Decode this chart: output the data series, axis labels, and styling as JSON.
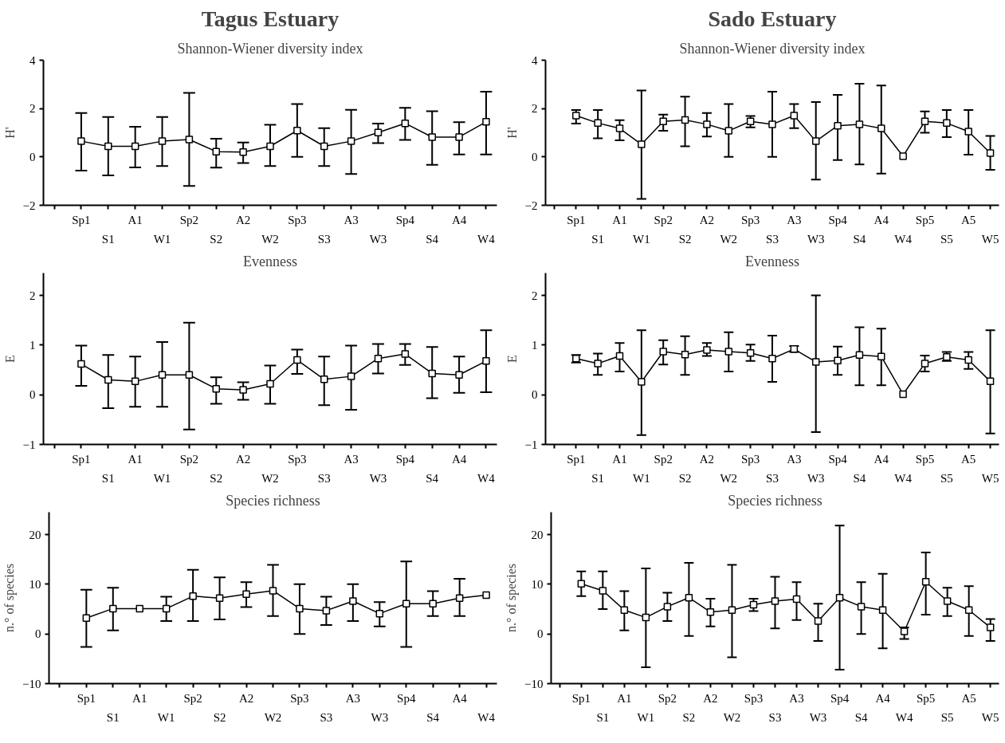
{
  "chart_data": [
    {
      "type": "line",
      "title": "Tagus Estuary",
      "subtitle": "Shannon-Wiener diversity index",
      "ylabel": "H'",
      "categories": [
        "Sp1",
        "S1",
        "A1",
        "W1",
        "Sp2",
        "S2",
        "A2",
        "W2",
        "Sp3",
        "S3",
        "A3",
        "W3",
        "Sp4",
        "S4",
        "A4",
        "W4"
      ],
      "ylim": [
        -2,
        4
      ],
      "yticks": [
        -2,
        0,
        2,
        4
      ],
      "marker": "square",
      "line_style": "solid",
      "grid": false,
      "series": [
        {
          "color": "#000000",
          "values": [
            0.65,
            0.44,
            0.44,
            0.65,
            0.72,
            0.22,
            0.2,
            0.44,
            1.09,
            0.44,
            0.65,
            1.01,
            1.39,
            0.82,
            0.82,
            1.45
          ],
          "errors": [
            [
              -0.57,
              1.82
            ],
            [
              -0.76,
              1.65
            ],
            [
              -0.43,
              1.25
            ],
            [
              -0.38,
              1.65
            ],
            [
              -1.2,
              2.65
            ],
            [
              -0.44,
              0.75
            ],
            [
              -0.25,
              0.6
            ],
            [
              -0.38,
              1.33
            ],
            [
              0,
              2.19
            ],
            [
              -0.38,
              1.19
            ],
            [
              -0.71,
              1.95
            ],
            [
              0.57,
              1.38
            ],
            [
              0.7,
              2.03
            ],
            [
              -0.33,
              1.89
            ],
            [
              0.1,
              1.44
            ],
            [
              0.1,
              2.7
            ]
          ]
        }
      ]
    },
    {
      "type": "line",
      "title": "Sado Estuary",
      "subtitle": "Shannon-Wiener diversity index",
      "ylabel": "H'",
      "categories": [
        "Sp1",
        "S1",
        "A1",
        "W1",
        "Sp2",
        "S2",
        "A2",
        "W2",
        "Sp3",
        "S3",
        "A3",
        "W3",
        "Sp4",
        "S4",
        "A4",
        "W4",
        "Sp5",
        "S5",
        "A5",
        "W5"
      ],
      "ylim": [
        -2,
        4
      ],
      "yticks": [
        -2,
        0,
        2,
        4
      ],
      "marker": "square",
      "line_style": "solid",
      "grid": false,
      "series": [
        {
          "color": "#000000",
          "values": [
            1.71,
            1.4,
            1.18,
            0.52,
            1.47,
            1.53,
            1.35,
            1.08,
            1.47,
            1.35,
            1.71,
            0.65,
            1.29,
            1.35,
            1.18,
            0.03,
            1.47,
            1.4,
            1.05,
            0.16
          ],
          "errors": [
            [
              1.38,
              1.94
            ],
            [
              0.77,
              1.94
            ],
            [
              0.69,
              1.52
            ],
            [
              -1.74,
              2.75
            ],
            [
              1.08,
              1.75
            ],
            [
              0.44,
              2.49
            ],
            [
              0.84,
              1.82
            ],
            [
              0,
              2.19
            ],
            [
              1.22,
              1.69
            ],
            [
              0,
              2.7
            ],
            [
              1.19,
              2.19
            ],
            [
              -0.94,
              2.27
            ],
            [
              -0.13,
              2.57
            ],
            [
              -0.31,
              3.03
            ],
            [
              -0.69,
              2.95
            ],
            null,
            [
              1.0,
              1.88
            ],
            [
              0.82,
              1.94
            ],
            [
              0.09,
              1.94
            ],
            [
              -0.53,
              0.87
            ]
          ]
        }
      ]
    },
    {
      "type": "line",
      "title": "Evenness",
      "ylabel": "E",
      "categories": [
        "Sp1",
        "S1",
        "A1",
        "W1",
        "Sp2",
        "S2",
        "A2",
        "W2",
        "Sp3",
        "S3",
        "A3",
        "W3",
        "Sp4",
        "S4",
        "A4",
        "W4"
      ],
      "ylim": [
        -1,
        2.45
      ],
      "yticks": [
        -1,
        0,
        1,
        2
      ],
      "marker": "square",
      "line_style": "solid",
      "grid": false,
      "series": [
        {
          "color": "#000000",
          "values": [
            0.62,
            0.3,
            0.27,
            0.4,
            0.4,
            0.12,
            0.1,
            0.22,
            0.7,
            0.31,
            0.37,
            0.73,
            0.82,
            0.43,
            0.4,
            0.68
          ],
          "errors": [
            [
              0.18,
              0.99
            ],
            [
              -0.27,
              0.8
            ],
            [
              -0.24,
              0.77
            ],
            [
              -0.24,
              1.06
            ],
            [
              -0.7,
              1.45
            ],
            [
              -0.18,
              0.35
            ],
            [
              -0.1,
              0.25
            ],
            [
              -0.18,
              0.59
            ],
            [
              0.42,
              0.91
            ],
            [
              -0.21,
              0.77
            ],
            [
              -0.3,
              0.99
            ],
            [
              0.43,
              1.02
            ],
            [
              0.6,
              1.02
            ],
            [
              -0.07,
              0.96
            ],
            [
              0.04,
              0.77
            ],
            [
              0.05,
              1.3
            ]
          ]
        }
      ]
    },
    {
      "type": "line",
      "title": "Evenness",
      "ylabel": "E",
      "categories": [
        "Sp1",
        "S1",
        "A1",
        "W1",
        "Sp2",
        "S2",
        "A2",
        "W2",
        "Sp3",
        "S3",
        "A3",
        "W3",
        "Sp4",
        "S4",
        "A4",
        "W4",
        "Sp5",
        "S5",
        "A5",
        "W5"
      ],
      "ylim": [
        -1,
        2.45
      ],
      "yticks": [
        -1,
        0,
        1,
        2
      ],
      "marker": "square",
      "line_style": "solid",
      "grid": false,
      "series": [
        {
          "color": "#000000",
          "values": [
            0.73,
            0.63,
            0.78,
            0.26,
            0.87,
            0.81,
            0.9,
            0.87,
            0.84,
            0.73,
            0.92,
            0.66,
            0.69,
            0.8,
            0.77,
            0.01,
            0.63,
            0.76,
            0.7,
            0.27
          ],
          "errors": [
            [
              0.65,
              0.8
            ],
            [
              0.4,
              0.83
            ],
            [
              0.47,
              1.04
            ],
            [
              -0.81,
              1.3
            ],
            [
              0.61,
              1.1
            ],
            [
              0.4,
              1.18
            ],
            [
              0.78,
              1.04
            ],
            [
              0.47,
              1.26
            ],
            [
              0.68,
              1.01
            ],
            [
              0.26,
              1.19
            ],
            [
              0.86,
              0.98
            ],
            [
              -0.75,
              2.0
            ],
            [
              0.4,
              0.97
            ],
            [
              0.19,
              1.36
            ],
            [
              0.19,
              1.33
            ],
            null,
            [
              0.47,
              0.79
            ],
            [
              0.68,
              0.86
            ],
            [
              0.52,
              0.86
            ],
            [
              -0.78,
              1.3
            ]
          ]
        }
      ]
    },
    {
      "type": "line",
      "title": "Species richness",
      "ylabel": "n.° of species",
      "categories": [
        "Sp1",
        "S1",
        "A1",
        "W1",
        "Sp2",
        "S2",
        "A2",
        "W2",
        "Sp3",
        "S3",
        "A3",
        "W3",
        "Sp4",
        "S4",
        "A4",
        "W4"
      ],
      "ylim": [
        -10,
        24.5
      ],
      "yticks": [
        -10,
        0,
        10,
        20
      ],
      "marker": "square",
      "line_style": "solid",
      "grid": false,
      "series": [
        {
          "color": "#000000",
          "values": [
            3.2,
            5.1,
            5.1,
            5.1,
            7.6,
            7.2,
            8.0,
            8.7,
            5.1,
            4.7,
            6.6,
            4.1,
            6.1,
            6.1,
            7.2,
            7.8
          ],
          "errors": [
            [
              -2.6,
              8.9
            ],
            [
              0.7,
              9.3
            ],
            null,
            [
              2.6,
              7.5
            ],
            [
              2.6,
              12.9
            ],
            [
              2.9,
              11.4
            ],
            [
              5.4,
              10.4
            ],
            [
              3.6,
              13.9
            ],
            [
              0,
              10
            ],
            [
              1.8,
              7.5
            ],
            [
              2.6,
              10
            ],
            [
              1.5,
              6.4
            ],
            [
              -2.6,
              14.6
            ],
            [
              3.6,
              8.6
            ],
            [
              3.6,
              11.1
            ],
            null
          ]
        }
      ]
    },
    {
      "type": "line",
      "title": "Species richness",
      "ylabel": "n.° of species",
      "categories": [
        "Sp1",
        "S1",
        "A1",
        "W1",
        "Sp2",
        "S2",
        "A2",
        "W2",
        "Sp3",
        "S3",
        "A3",
        "W3",
        "Sp4",
        "S4",
        "A4",
        "W4",
        "Sp5",
        "S5",
        "A5",
        "W5"
      ],
      "ylim": [
        -10,
        24.5
      ],
      "yticks": [
        -10,
        0,
        10,
        20
      ],
      "marker": "square",
      "line_style": "solid",
      "grid": false,
      "series": [
        {
          "color": "#000000",
          "values": [
            10.1,
            8.7,
            4.8,
            3.3,
            5.5,
            7.3,
            4.4,
            4.8,
            5.9,
            6.6,
            7.0,
            2.6,
            7.3,
            5.5,
            4.8,
            0.5,
            10.5,
            6.6,
            4.8,
            1.3
          ],
          "errors": [
            [
              7.6,
              12.6
            ],
            [
              5.0,
              12.6
            ],
            [
              0.7,
              8.6
            ],
            [
              -6.7,
              13.2
            ],
            [
              2.6,
              8.3
            ],
            [
              -0.4,
              14.3
            ],
            [
              1.5,
              7.1
            ],
            [
              -4.7,
              13.9
            ],
            [
              4.6,
              7.1
            ],
            [
              1.1,
              11.5
            ],
            [
              2.8,
              10.4
            ],
            [
              -1.4,
              6.1
            ],
            [
              -7.2,
              21.8
            ],
            [
              0,
              10.4
            ],
            [
              -2.9,
              12.1
            ],
            [
              -1.0,
              1.3
            ],
            [
              3.9,
              16.4
            ],
            [
              3.6,
              9.3
            ],
            [
              -0.4,
              9.6
            ],
            [
              -1.4,
              3.0
            ]
          ]
        }
      ]
    }
  ]
}
